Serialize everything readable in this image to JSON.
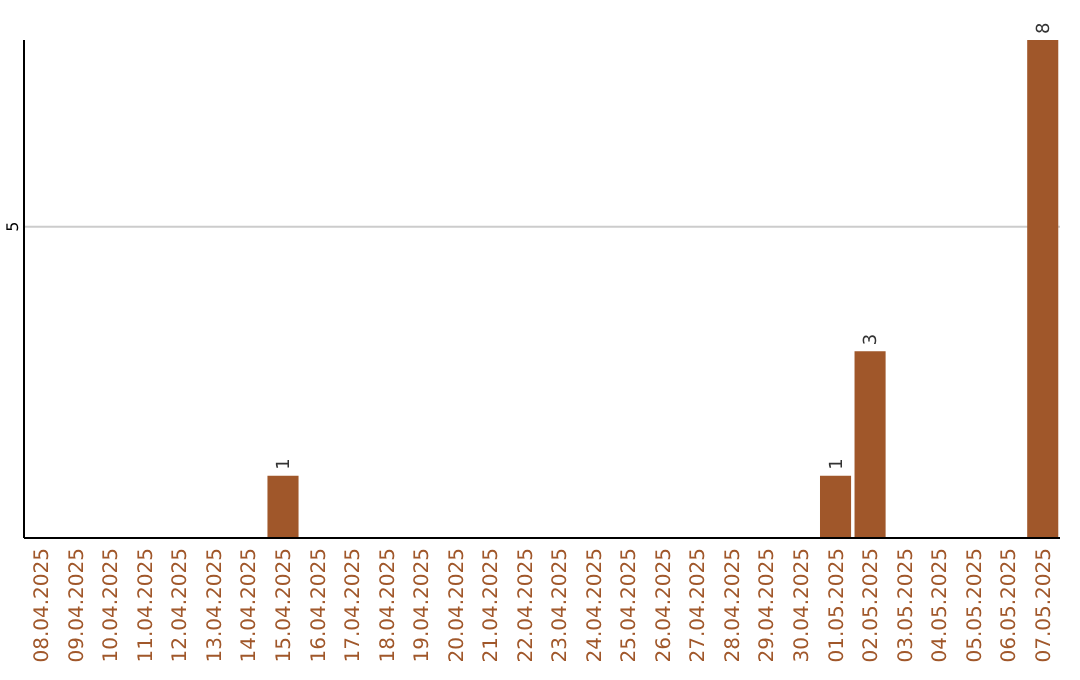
{
  "chart_data": {
    "type": "bar",
    "categories": [
      "08.04.2025",
      "09.04.2025",
      "10.04.2025",
      "11.04.2025",
      "12.04.2025",
      "13.04.2025",
      "14.04.2025",
      "15.04.2025",
      "16.04.2025",
      "17.04.2025",
      "18.04.2025",
      "19.04.2025",
      "20.04.2025",
      "21.04.2025",
      "22.04.2025",
      "23.04.2025",
      "24.04.2025",
      "25.04.2025",
      "26.04.2025",
      "27.04.2025",
      "28.04.2025",
      "29.04.2025",
      "30.04.2025",
      "01.05.2025",
      "02.05.2025",
      "03.05.2025",
      "04.05.2025",
      "05.05.2025",
      "06.05.2025",
      "07.05.2025"
    ],
    "values": [
      0,
      0,
      0,
      0,
      0,
      0,
      0,
      1,
      0,
      0,
      0,
      0,
      0,
      0,
      0,
      0,
      0,
      0,
      0,
      0,
      0,
      0,
      0,
      1,
      3,
      0,
      0,
      0,
      0,
      8
    ],
    "value_labels": [
      null,
      null,
      null,
      null,
      null,
      null,
      null,
      "1",
      null,
      null,
      null,
      null,
      null,
      null,
      null,
      null,
      null,
      null,
      null,
      null,
      null,
      null,
      null,
      "1",
      "3",
      null,
      null,
      null,
      null,
      "8"
    ],
    "color": "#a0572a",
    "ylim": [
      0,
      8
    ],
    "yticks": [
      5
    ],
    "grid": "y"
  }
}
